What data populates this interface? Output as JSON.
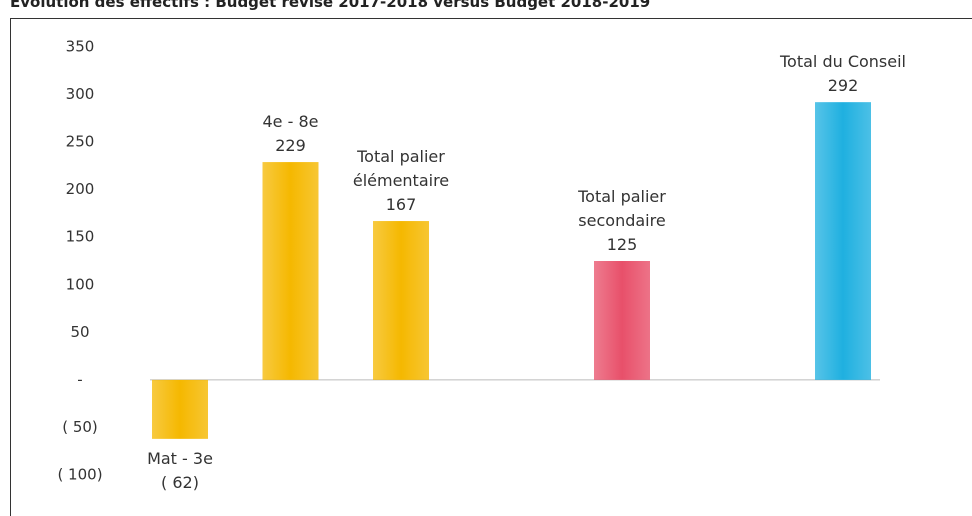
{
  "chart_data": {
    "type": "bar",
    "title": "Évolution des effectifs : Budget révisé 2017-2018 versus Budget 2018-2019",
    "categories": [
      "Mat - 3e",
      "4e - 8e",
      "Total palier élémentaire",
      "Total palier secondaire",
      "Total du Conseil"
    ],
    "values": [
      -62,
      229,
      167,
      125,
      292
    ],
    "value_labels": [
      "( 62)",
      "229",
      "167",
      "125",
      "292"
    ],
    "colors": [
      "#f5b800",
      "#f5b800",
      "#f5b800",
      "#e8506a",
      "#1fb0e0"
    ],
    "ylim": [
      -100,
      350
    ],
    "yticks": [
      {
        "value": -100,
        "label": "( 100)"
      },
      {
        "value": -50,
        "label": "( 50)"
      },
      {
        "value": 0,
        "label": "-"
      },
      50,
      100,
      150,
      200,
      250,
      300,
      350
    ],
    "grid": false
  }
}
